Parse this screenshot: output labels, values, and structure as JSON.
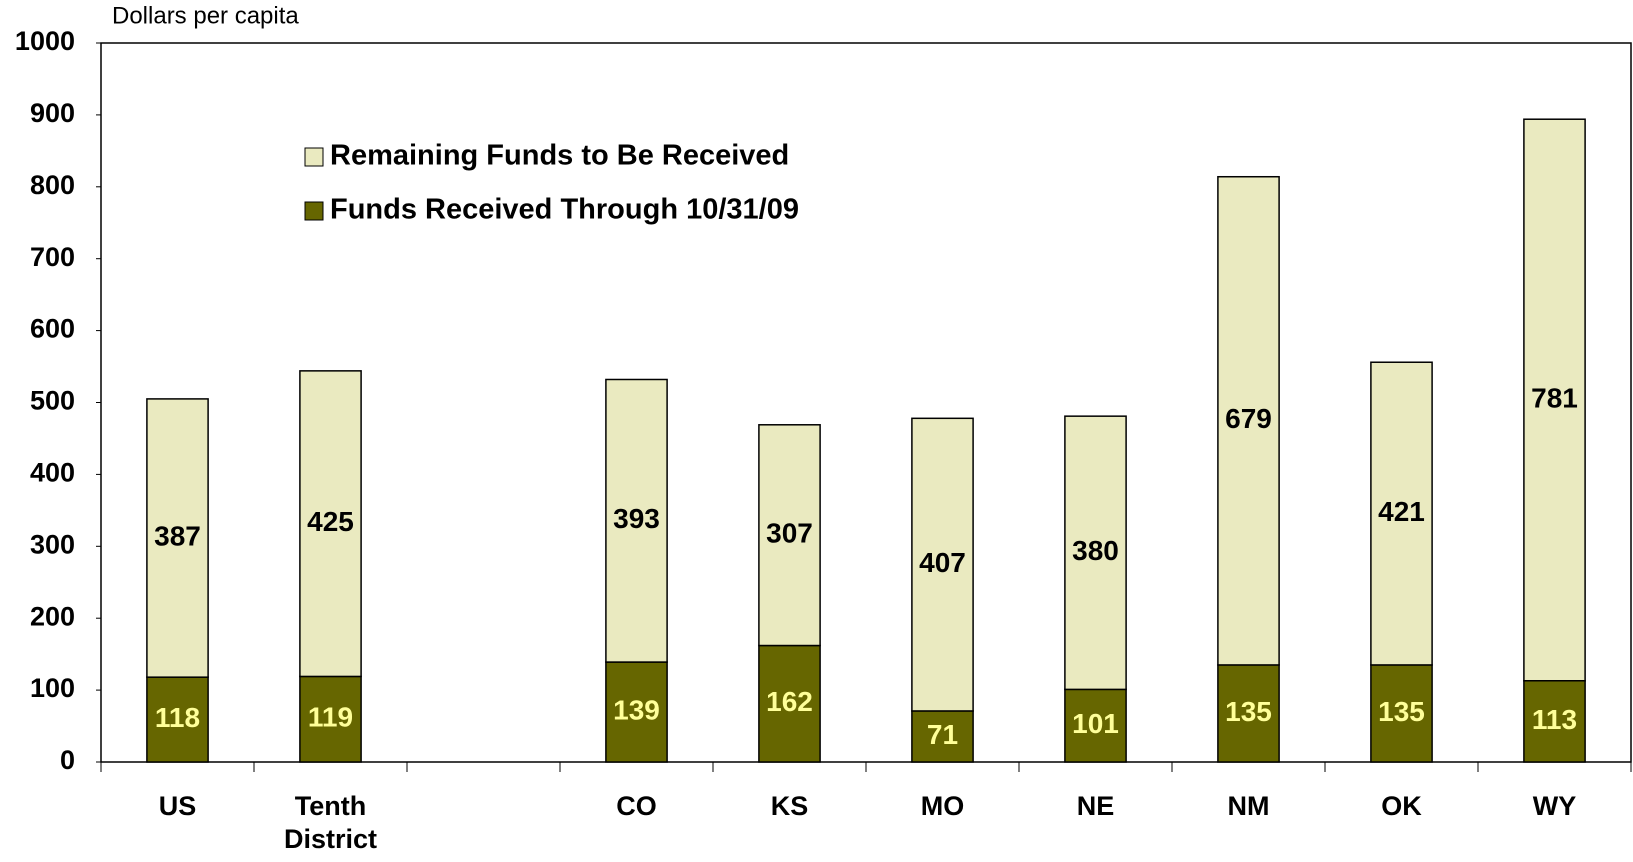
{
  "chart_data": {
    "type": "stacked_bar",
    "y_label": "Dollars per capita",
    "categories": [
      "US",
      "Tenth District",
      null,
      "CO",
      "KS",
      "MO",
      "NE",
      "NM",
      "OK",
      "WY"
    ],
    "series": [
      {
        "name": "Funds Received Through 10/31/09",
        "color": "#666600",
        "label_color": "#ffff99",
        "values": [
          118,
          119,
          null,
          139,
          162,
          71,
          101,
          135,
          135,
          113
        ]
      },
      {
        "name": "Remaining Funds to Be Received",
        "color": "#eaeac0",
        "label_color": "#000000",
        "values": [
          387,
          425,
          null,
          393,
          307,
          407,
          380,
          679,
          421,
          781
        ]
      }
    ],
    "ylim": [
      0,
      1000
    ],
    "yticks": [
      0,
      100,
      200,
      300,
      400,
      500,
      600,
      700,
      800,
      900,
      1000
    ],
    "grid": false,
    "legend": "upper left"
  }
}
